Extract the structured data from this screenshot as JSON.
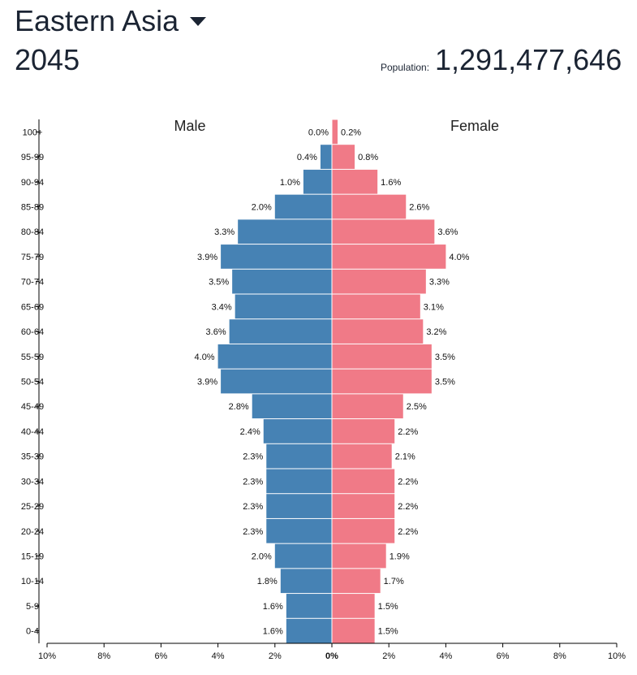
{
  "header": {
    "region": "Eastern Asia",
    "year": "2045",
    "population_label": "Population:",
    "population_value": "1,291,477,646"
  },
  "colors": {
    "male": "#4682b4",
    "female": "#f07a87",
    "axis": "#000000"
  },
  "chart_data": {
    "type": "bar",
    "orientation": "horizontal-pyramid",
    "male_label": "Male",
    "female_label": "Female",
    "categories": [
      "100+",
      "95-99",
      "90-94",
      "85-89",
      "80-84",
      "75-79",
      "70-74",
      "65-69",
      "60-64",
      "55-59",
      "50-54",
      "45-49",
      "40-44",
      "35-39",
      "30-34",
      "25-29",
      "20-24",
      "15-19",
      "10-14",
      "5-9",
      "0-4"
    ],
    "series": [
      {
        "name": "Male",
        "values": [
          0.0,
          0.4,
          1.0,
          2.0,
          3.3,
          3.9,
          3.5,
          3.4,
          3.6,
          4.0,
          3.9,
          2.8,
          2.4,
          2.3,
          2.3,
          2.3,
          2.3,
          2.0,
          1.8,
          1.6,
          1.6
        ]
      },
      {
        "name": "Female",
        "values": [
          0.2,
          0.8,
          1.6,
          2.6,
          3.6,
          4.0,
          3.3,
          3.1,
          3.2,
          3.5,
          3.5,
          2.5,
          2.2,
          2.1,
          2.2,
          2.2,
          2.2,
          1.9,
          1.7,
          1.5,
          1.5
        ]
      }
    ],
    "xlim": [
      -10,
      10
    ],
    "x_ticks": [
      "10%",
      "8%",
      "6%",
      "4%",
      "2%",
      "0%",
      "2%",
      "4%",
      "6%",
      "8%",
      "10%"
    ]
  }
}
